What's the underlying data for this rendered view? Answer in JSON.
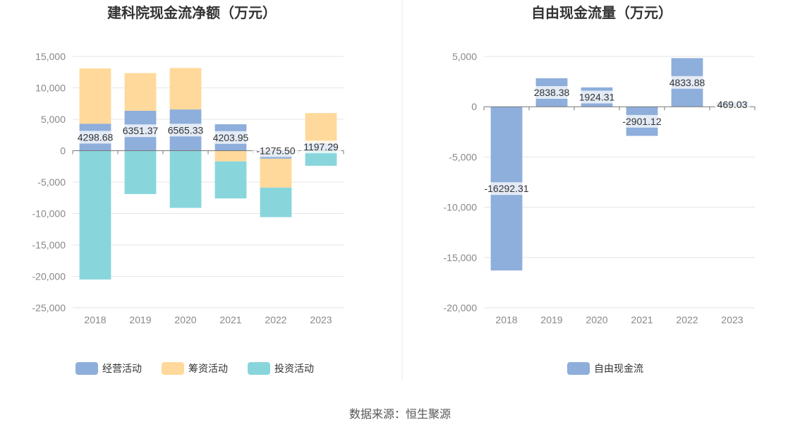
{
  "source": "数据来源：恒生聚源",
  "chart_data": [
    {
      "type": "bar",
      "stacked": true,
      "title": "建科院现金流净额（万元）",
      "categories": [
        "2018",
        "2019",
        "2020",
        "2021",
        "2022",
        "2023"
      ],
      "ylim": [
        -25000,
        15000
      ],
      "yticks": [
        15000,
        10000,
        5000,
        0,
        -5000,
        -10000,
        -15000,
        -20000,
        -25000
      ],
      "ytick_labels": [
        "15,000",
        "10,000",
        "5,000",
        "0",
        "-5,000",
        "-10,000",
        "-15,000",
        "-20,000",
        "-25,000"
      ],
      "grid": true,
      "legend_position": "bottom",
      "series": [
        {
          "name": "经营活动",
          "color": "#8eaedb",
          "values": [
            4298.68,
            6351.37,
            6565.33,
            4203.95,
            -1275.5,
            1197.29
          ]
        },
        {
          "name": "筹资活动",
          "color": "#ffd99b",
          "values": [
            8800,
            6000,
            6600,
            -1700,
            -4600,
            4800
          ]
        },
        {
          "name": "投资活动",
          "color": "#88d6dc",
          "values": [
            -20500,
            -6900,
            -9100,
            -5900,
            -4700,
            -2400
          ]
        }
      ],
      "data_labels": [
        "4298.68",
        "6351.37",
        "6565.33",
        "4203.95",
        "-1275.50",
        "1197.29"
      ]
    },
    {
      "type": "bar",
      "title": "自由现金流量（万元）",
      "categories": [
        "2018",
        "2019",
        "2020",
        "2021",
        "2022",
        "2023"
      ],
      "ylim": [
        -20000,
        5000
      ],
      "yticks": [
        5000,
        0,
        -5000,
        -10000,
        -15000,
        -20000
      ],
      "ytick_labels": [
        "5,000",
        "0",
        "-5,000",
        "-10,000",
        "-15,000",
        "-20,000"
      ],
      "grid": true,
      "legend_position": "bottom",
      "series": [
        {
          "name": "自由现金流",
          "color": "#8eaedb",
          "values": [
            -16292.31,
            2838.38,
            1924.31,
            -2901.12,
            4833.88,
            469.03
          ]
        }
      ],
      "data_labels": [
        "-16292.31",
        "2838.38",
        "1924.31",
        "-2901.12",
        "4833.88",
        "469.03"
      ]
    }
  ]
}
